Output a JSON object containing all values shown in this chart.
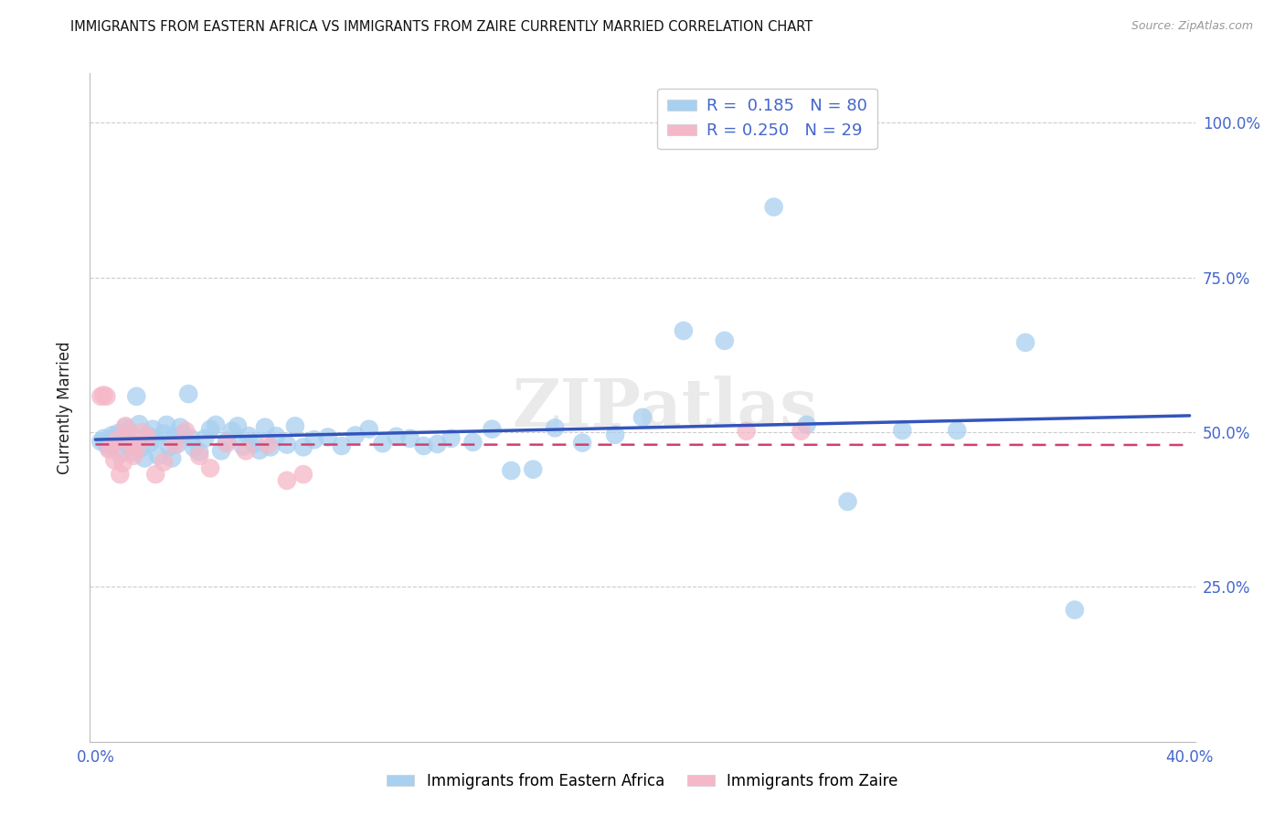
{
  "title": "IMMIGRANTS FROM EASTERN AFRICA VS IMMIGRANTS FROM ZAIRE CURRENTLY MARRIED CORRELATION CHART",
  "source": "Source: ZipAtlas.com",
  "xlabel_blue": "Immigrants from Eastern Africa",
  "xlabel_pink": "Immigrants from Zaire",
  "ylabel": "Currently Married",
  "xlim": [
    -0.002,
    0.402
  ],
  "ylim": [
    0.0,
    1.08
  ],
  "ytick_positions": [
    0.25,
    0.5,
    0.75,
    1.0
  ],
  "ytick_labels": [
    "25.0%",
    "50.0%",
    "75.0%",
    "100.0%"
  ],
  "xtick_positions": [
    0.0,
    0.1,
    0.2,
    0.3,
    0.4
  ],
  "xtick_labels": [
    "0.0%",
    "",
    "",
    "",
    "40.0%"
  ],
  "legend_R_blue": "0.185",
  "legend_N_blue": "80",
  "legend_R_pink": "0.250",
  "legend_N_pink": "29",
  "blue_color": "#A8D0F0",
  "pink_color": "#F5B8C8",
  "blue_line_color": "#3355BB",
  "pink_line_color": "#D04070",
  "watermark": "ZIPatlas",
  "blue_scatter_x": [
    0.002,
    0.003,
    0.004,
    0.005,
    0.006,
    0.007,
    0.008,
    0.009,
    0.01,
    0.011,
    0.012,
    0.012,
    0.013,
    0.014,
    0.015,
    0.016,
    0.017,
    0.018,
    0.019,
    0.02,
    0.021,
    0.022,
    0.023,
    0.025,
    0.026,
    0.027,
    0.028,
    0.029,
    0.03,
    0.031,
    0.032,
    0.034,
    0.035,
    0.036,
    0.038,
    0.04,
    0.042,
    0.044,
    0.046,
    0.048,
    0.05,
    0.052,
    0.054,
    0.056,
    0.058,
    0.06,
    0.062,
    0.064,
    0.066,
    0.07,
    0.073,
    0.076,
    0.08,
    0.085,
    0.09,
    0.095,
    0.1,
    0.105,
    0.11,
    0.115,
    0.12,
    0.125,
    0.13,
    0.138,
    0.145,
    0.152,
    0.16,
    0.168,
    0.178,
    0.19,
    0.2,
    0.215,
    0.23,
    0.248,
    0.26,
    0.275,
    0.295,
    0.315,
    0.34,
    0.358
  ],
  "blue_scatter_y": [
    0.485,
    0.49,
    0.48,
    0.475,
    0.495,
    0.488,
    0.498,
    0.465,
    0.492,
    0.508,
    0.478,
    0.503,
    0.483,
    0.468,
    0.558,
    0.513,
    0.475,
    0.458,
    0.495,
    0.483,
    0.505,
    0.49,
    0.462,
    0.498,
    0.512,
    0.476,
    0.458,
    0.492,
    0.481,
    0.508,
    0.498,
    0.562,
    0.49,
    0.475,
    0.468,
    0.49,
    0.505,
    0.512,
    0.47,
    0.486,
    0.502,
    0.51,
    0.477,
    0.494,
    0.482,
    0.471,
    0.508,
    0.476,
    0.494,
    0.48,
    0.51,
    0.476,
    0.488,
    0.492,
    0.478,
    0.495,
    0.505,
    0.482,
    0.493,
    0.49,
    0.478,
    0.481,
    0.49,
    0.484,
    0.505,
    0.438,
    0.44,
    0.507,
    0.483,
    0.496,
    0.524,
    0.664,
    0.648,
    0.864,
    0.512,
    0.388,
    0.503,
    0.503,
    0.645,
    0.213
  ],
  "pink_scatter_x": [
    0.002,
    0.003,
    0.004,
    0.005,
    0.006,
    0.007,
    0.008,
    0.009,
    0.01,
    0.011,
    0.012,
    0.013,
    0.014,
    0.015,
    0.017,
    0.019,
    0.022,
    0.025,
    0.029,
    0.033,
    0.038,
    0.042,
    0.048,
    0.055,
    0.063,
    0.07,
    0.076,
    0.238,
    0.258
  ],
  "pink_scatter_y": [
    0.558,
    0.56,
    0.558,
    0.472,
    0.478,
    0.455,
    0.488,
    0.432,
    0.45,
    0.51,
    0.498,
    0.478,
    0.462,
    0.475,
    0.5,
    0.492,
    0.432,
    0.452,
    0.48,
    0.502,
    0.462,
    0.442,
    0.482,
    0.47,
    0.48,
    0.422,
    0.432,
    0.502,
    0.502
  ],
  "grid_color": "#CCCCCC",
  "background_color": "#FFFFFF"
}
